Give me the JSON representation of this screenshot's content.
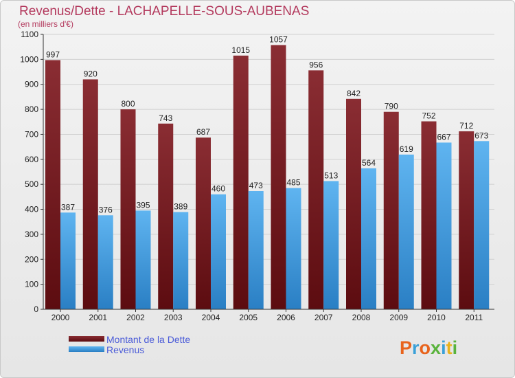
{
  "chart_data": {
    "type": "bar",
    "title": "Revenus/Dette - LACHAPELLE-SOUS-AUBENAS",
    "subtitle": "(en milliers d'€)",
    "categories": [
      "2000",
      "2001",
      "2002",
      "2003",
      "2004",
      "2005",
      "2006",
      "2007",
      "2008",
      "2009",
      "2010",
      "2011"
    ],
    "series": [
      {
        "name": "Montant de la Dette",
        "values": [
          997,
          920,
          800,
          743,
          687,
          1015,
          1057,
          956,
          842,
          790,
          752,
          712
        ],
        "color": "#7a1f24"
      },
      {
        "name": "Revenus",
        "values": [
          387,
          376,
          395,
          389,
          460,
          473,
          485,
          513,
          564,
          619,
          667,
          673
        ],
        "color": "#4aa3e6"
      }
    ],
    "ylim": [
      0,
      1100
    ],
    "yticks": [
      0,
      100,
      200,
      300,
      400,
      500,
      600,
      700,
      800,
      900,
      1000,
      1100
    ],
    "grid": true,
    "legend_position": "bottom-left",
    "xlabel": "",
    "ylabel": ""
  },
  "logo": {
    "letters": [
      "P",
      "r",
      "o",
      "x",
      "i",
      "t",
      "i"
    ],
    "colors": [
      "#e8631c",
      "#3aa0d8",
      "#e8631c",
      "#59b33c",
      "#3aa0d8",
      "#e8b21c",
      "#59b33c"
    ]
  }
}
